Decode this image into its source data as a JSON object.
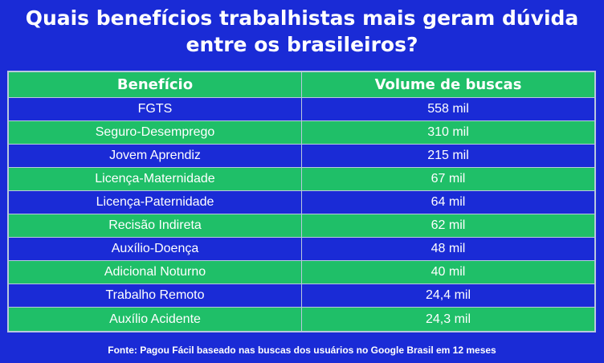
{
  "title": "Quais benefícios trabalhistas mais geram dúvida entre os brasileiros?",
  "source": "Fonte: Pagou Fácil baseado nas buscas dos usuários no Google Brasil em 12 meses",
  "colors": {
    "background": "#1a2bd6",
    "row_green": "#1fbf68",
    "row_blue": "#1a2bd6",
    "border": "#b9c8de"
  },
  "chart_data": {
    "type": "table",
    "title": "Quais benefícios trabalhistas mais geram dúvida entre os brasileiros?",
    "columns": [
      "Benefício",
      "Volume de buscas"
    ],
    "rows": [
      {
        "benefit": "FGTS",
        "volume": "558 mil"
      },
      {
        "benefit": "Seguro-Desemprego",
        "volume": "310 mil"
      },
      {
        "benefit": "Jovem Aprendiz",
        "volume": "215 mil"
      },
      {
        "benefit": "Licença-Maternidade",
        "volume": "67 mil"
      },
      {
        "benefit": "Licença-Paternidade",
        "volume": "64 mil"
      },
      {
        "benefit": "Recisão Indireta",
        "volume": "62 mil"
      },
      {
        "benefit": "Auxílio-Doença",
        "volume": "48 mil"
      },
      {
        "benefit": "Adicional Noturno",
        "volume": "40 mil"
      },
      {
        "benefit": "Trabalho Remoto",
        "volume": "24,4 mil"
      },
      {
        "benefit": "Auxílio Acidente",
        "volume": "24,3 mil"
      }
    ]
  }
}
